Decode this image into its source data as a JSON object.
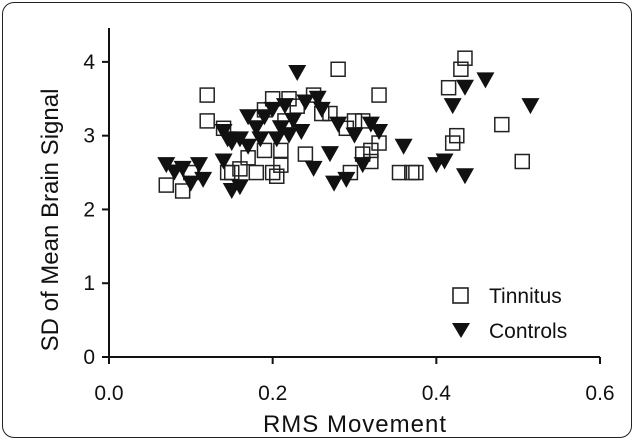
{
  "chart_data": {
    "type": "scatter",
    "title": "",
    "xlabel": "RMS Movement",
    "ylabel": "SD of Mean Brain Signal",
    "xlim": [
      0.0,
      0.6
    ],
    "ylim": [
      0,
      4.5
    ],
    "x_ticks": [
      "0.0",
      "0.2",
      "0.4",
      "0.6"
    ],
    "x_tick_values": [
      0.0,
      0.2,
      0.4,
      0.6
    ],
    "y_ticks": [
      "0",
      "1",
      "2",
      "3",
      "4"
    ],
    "y_tick_values": [
      0,
      1,
      2,
      3,
      4
    ],
    "grid": false,
    "legend_position": "bottom-right",
    "series": [
      {
        "name": "Tinnitus",
        "marker": "open-square",
        "color": "#222222",
        "points": [
          [
            0.07,
            2.33
          ],
          [
            0.09,
            2.25
          ],
          [
            0.1,
            2.5
          ],
          [
            0.12,
            3.55
          ],
          [
            0.12,
            3.2
          ],
          [
            0.14,
            3.1
          ],
          [
            0.145,
            2.5
          ],
          [
            0.15,
            2.5
          ],
          [
            0.16,
            2.55
          ],
          [
            0.17,
            2.7
          ],
          [
            0.18,
            2.5
          ],
          [
            0.19,
            2.8
          ],
          [
            0.19,
            3.35
          ],
          [
            0.2,
            3.5
          ],
          [
            0.2,
            2.5
          ],
          [
            0.205,
            2.45
          ],
          [
            0.21,
            2.6
          ],
          [
            0.21,
            2.8
          ],
          [
            0.215,
            3.2
          ],
          [
            0.22,
            3.5
          ],
          [
            0.23,
            3.4
          ],
          [
            0.24,
            2.75
          ],
          [
            0.25,
            3.55
          ],
          [
            0.26,
            3.3
          ],
          [
            0.27,
            3.3
          ],
          [
            0.28,
            3.9
          ],
          [
            0.29,
            3.1
          ],
          [
            0.295,
            2.5
          ],
          [
            0.3,
            3.2
          ],
          [
            0.31,
            3.2
          ],
          [
            0.31,
            2.75
          ],
          [
            0.32,
            2.65
          ],
          [
            0.32,
            2.8
          ],
          [
            0.33,
            2.9
          ],
          [
            0.33,
            3.55
          ],
          [
            0.355,
            2.5
          ],
          [
            0.37,
            2.5
          ],
          [
            0.375,
            2.5
          ],
          [
            0.415,
            3.65
          ],
          [
            0.42,
            2.9
          ],
          [
            0.425,
            3.0
          ],
          [
            0.43,
            3.9
          ],
          [
            0.435,
            4.05
          ],
          [
            0.48,
            3.15
          ],
          [
            0.505,
            2.65
          ]
        ]
      },
      {
        "name": "Controls",
        "marker": "filled-down-triangle",
        "color": "#111111",
        "points": [
          [
            0.07,
            2.6
          ],
          [
            0.08,
            2.5
          ],
          [
            0.09,
            2.55
          ],
          [
            0.1,
            2.35
          ],
          [
            0.11,
            2.6
          ],
          [
            0.115,
            2.4
          ],
          [
            0.14,
            3.05
          ],
          [
            0.14,
            2.65
          ],
          [
            0.145,
            2.95
          ],
          [
            0.15,
            2.25
          ],
          [
            0.15,
            2.9
          ],
          [
            0.16,
            2.3
          ],
          [
            0.16,
            2.95
          ],
          [
            0.17,
            3.25
          ],
          [
            0.17,
            2.85
          ],
          [
            0.18,
            3.1
          ],
          [
            0.185,
            2.95
          ],
          [
            0.19,
            3.25
          ],
          [
            0.2,
            3.35
          ],
          [
            0.205,
            2.95
          ],
          [
            0.21,
            3.1
          ],
          [
            0.215,
            3.4
          ],
          [
            0.22,
            3.0
          ],
          [
            0.225,
            3.2
          ],
          [
            0.23,
            3.85
          ],
          [
            0.235,
            3.05
          ],
          [
            0.24,
            3.45
          ],
          [
            0.25,
            2.55
          ],
          [
            0.255,
            3.5
          ],
          [
            0.26,
            3.35
          ],
          [
            0.27,
            2.75
          ],
          [
            0.275,
            2.35
          ],
          [
            0.28,
            3.15
          ],
          [
            0.29,
            2.4
          ],
          [
            0.3,
            3.0
          ],
          [
            0.31,
            2.6
          ],
          [
            0.32,
            3.15
          ],
          [
            0.33,
            3.05
          ],
          [
            0.36,
            2.85
          ],
          [
            0.4,
            2.6
          ],
          [
            0.41,
            2.65
          ],
          [
            0.42,
            3.4
          ],
          [
            0.435,
            2.45
          ],
          [
            0.435,
            3.65
          ],
          [
            0.46,
            3.75
          ],
          [
            0.515,
            3.4
          ]
        ]
      }
    ]
  }
}
